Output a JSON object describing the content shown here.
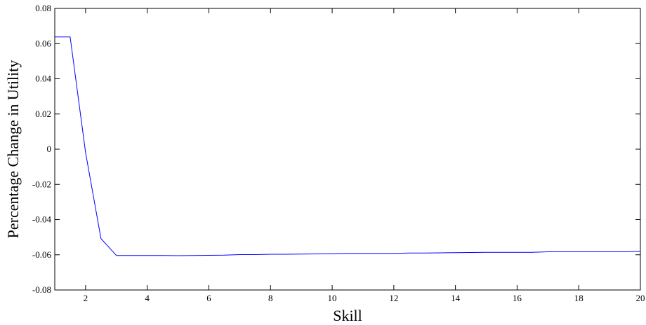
{
  "chart_data": {
    "type": "line",
    "title": "",
    "xlabel": "Skill",
    "ylabel": "Percentage Change in Utility",
    "xlim": [
      1,
      20
    ],
    "ylim": [
      -0.08,
      0.08
    ],
    "grid": false,
    "x_ticks": [
      2,
      4,
      6,
      8,
      10,
      12,
      14,
      16,
      18,
      20
    ],
    "y_ticks": [
      -0.08,
      -0.06,
      -0.04,
      -0.02,
      0,
      0.02,
      0.04,
      0.06,
      0.08
    ],
    "x_tick_labels": [
      "2",
      "4",
      "6",
      "8",
      "10",
      "12",
      "14",
      "16",
      "18",
      "20"
    ],
    "y_tick_labels": [
      "-0.08",
      "-0.06",
      "-0.04",
      "-0.02",
      "0",
      "0.02",
      "0.04",
      "0.06",
      "0.08"
    ],
    "series": [
      {
        "color": "#0000ff",
        "x": [
          1,
          1.5,
          2,
          2.5,
          3,
          3.5,
          4,
          4.5,
          5,
          5.5,
          6,
          6.5,
          7,
          7.5,
          8,
          8.5,
          9,
          9.5,
          10,
          10.5,
          11,
          11.5,
          12,
          12.5,
          13,
          13.5,
          14,
          14.5,
          15,
          15.5,
          16,
          16.5,
          17,
          17.5,
          18,
          18.5,
          19,
          19.5,
          20
        ],
        "y": [
          0.0638,
          0.0638,
          -0.002,
          -0.0508,
          -0.0604,
          -0.0604,
          -0.0604,
          -0.0604,
          -0.0605,
          -0.0604,
          -0.0603,
          -0.0602,
          -0.0599,
          -0.0599,
          -0.0597,
          -0.0597,
          -0.0596,
          -0.0595,
          -0.0594,
          -0.0592,
          -0.0592,
          -0.0592,
          -0.0592,
          -0.059,
          -0.059,
          -0.0589,
          -0.0588,
          -0.0587,
          -0.0586,
          -0.0586,
          -0.0586,
          -0.0586,
          -0.0583,
          -0.0583,
          -0.0583,
          -0.0583,
          -0.0583,
          -0.0583,
          -0.058
        ]
      }
    ]
  }
}
